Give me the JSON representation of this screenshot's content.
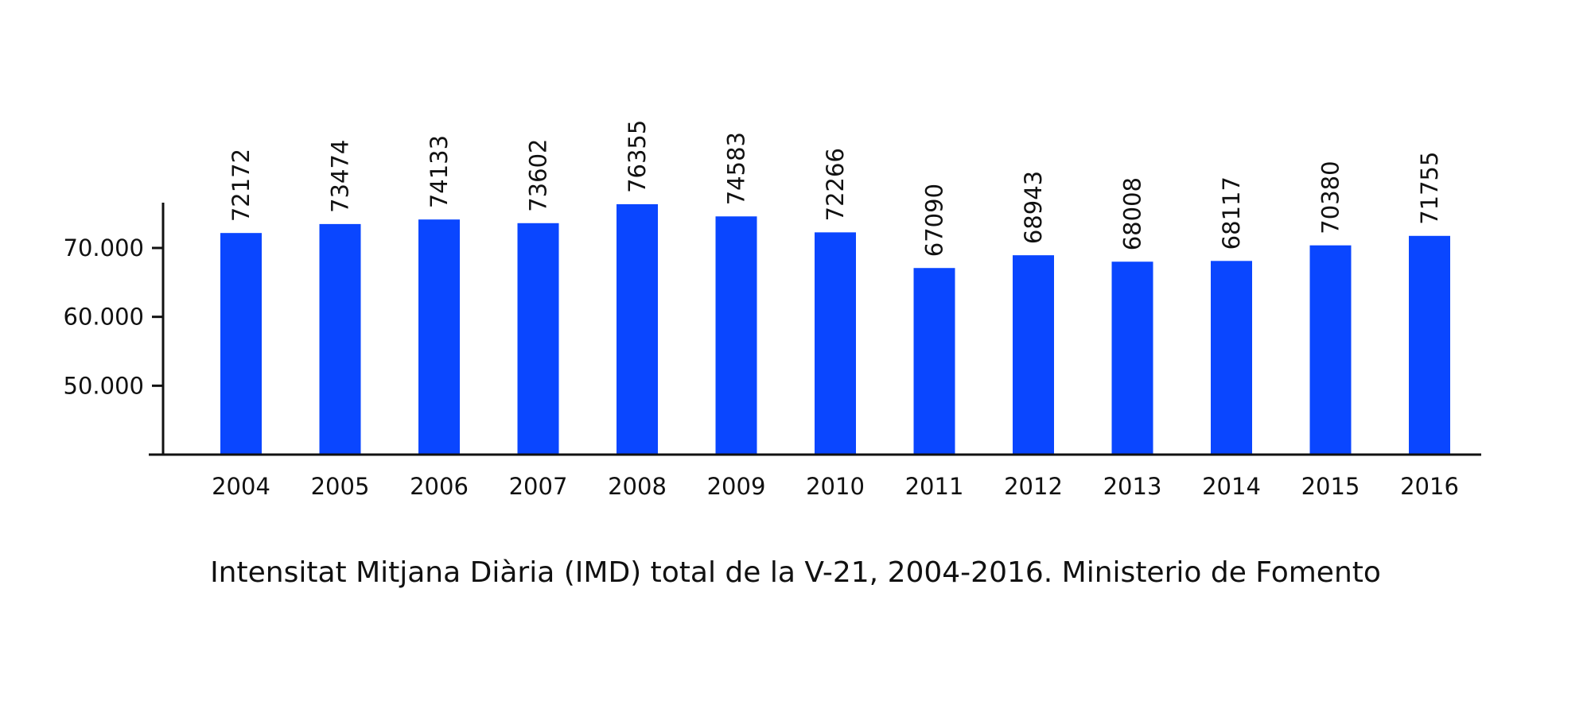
{
  "caption": "Intensitat Mitjana Diària (IMD) total de la V-21, 2004-2016.  Ministerio de Fomento",
  "colors": {
    "bar": "#0a46ff",
    "axis": "#111111",
    "text": "#111111"
  },
  "chart_data": {
    "type": "bar",
    "title": "",
    "xlabel": "",
    "ylabel": "",
    "categories": [
      "2004",
      "2005",
      "2006",
      "2007",
      "2008",
      "2009",
      "2010",
      "2011",
      "2012",
      "2013",
      "2014",
      "2015",
      "2016"
    ],
    "values": [
      72172,
      73474,
      74133,
      73602,
      76355,
      74583,
      72266,
      67090,
      68943,
      68008,
      68117,
      70380,
      71755
    ],
    "data_labels": [
      "72172",
      "73474",
      "74133",
      "73602",
      "76355",
      "74583",
      "72266",
      "67090",
      "68943",
      "68008",
      "68117",
      "70380",
      "71755"
    ],
    "yticks": [
      50000,
      60000,
      70000
    ],
    "ytick_labels": [
      "50.000",
      "60.000",
      "70.000"
    ],
    "ylim": [
      40000,
      77000
    ],
    "grid": false,
    "legend": "none"
  }
}
